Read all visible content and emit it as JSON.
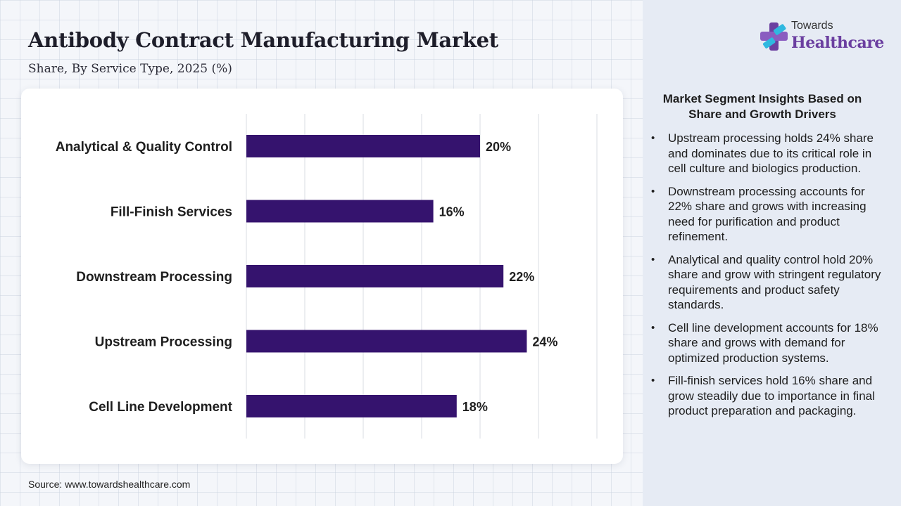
{
  "header": {
    "title": "Antibody Contract Manufacturing Market",
    "subtitle": "Share, By Service Type, 2025 (%)"
  },
  "logo": {
    "line1": "Towards",
    "line2": "Healthcare"
  },
  "chart_data": {
    "type": "bar",
    "orientation": "horizontal",
    "categories": [
      "Analytical & Quality Control",
      "Fill-Finish Services",
      "Downstream Processing",
      "Upstream Processing",
      "Cell Line Development"
    ],
    "values": [
      20,
      16,
      22,
      24,
      18
    ],
    "value_labels": [
      "20%",
      "16%",
      "22%",
      "24%",
      "18%"
    ],
    "xlim": [
      0,
      30
    ],
    "grid": true,
    "bar_color": "#35136e"
  },
  "insights": {
    "title": "Market Segment Insights Based on Share and Growth Drivers",
    "bullet": "•",
    "items": [
      "Upstream processing holds 24% share and dominates due to its critical role in cell culture and biologics production.",
      "Downstream processing accounts for 22% share and grows with increasing need for purification and product refinement.",
      "Analytical and quality control hold 20% share and grow with stringent regulatory requirements and product safety standards.",
      "Cell line development accounts for 18% share and grows with demand for optimized production systems.",
      "Fill-finish services hold 16% share and grow steadily due to importance in final product preparation and packaging."
    ]
  },
  "source": "Source: www.towardshealthcare.com",
  "colors": {
    "brand": "#6b3fa0",
    "bar": "#35136e",
    "logo_accent": "#2fb8e0"
  }
}
